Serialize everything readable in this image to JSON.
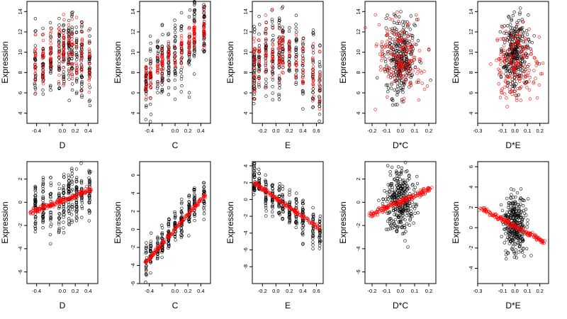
{
  "colors": {
    "observed": "#000000",
    "fitted": "#ff0000",
    "background": "#ffffff"
  },
  "chart_data": [
    {
      "type": "scatter",
      "row": 1,
      "xlabel": "D",
      "ylabel": "Expression",
      "xlim": [
        -0.55,
        0.55
      ],
      "ylim": [
        3,
        15
      ],
      "xticks": [
        -0.4,
        -0.2,
        0.0,
        0.2,
        0.4
      ],
      "xtick_labels": [
        "-0.4",
        "",
        "0.0",
        "0.2",
        "0.4"
      ],
      "yticks": [
        4,
        6,
        8,
        10,
        12,
        14
      ],
      "ytick_labels": [
        "4",
        "6",
        "8",
        "10",
        "12",
        "14"
      ],
      "grid": false,
      "legend": "none",
      "series": [
        {
          "color": "#000000",
          "x_levels": [
            -0.42,
            -0.3,
            -0.18,
            -0.05,
            0.02,
            0.1,
            0.15,
            0.22,
            0.3,
            0.42
          ],
          "y_center": [
            8.5,
            8.8,
            9.3,
            9.6,
            9.9,
            10.2,
            9.8,
            9.5,
            9.2,
            8.9
          ],
          "y_spread": 1.8,
          "n": 300
        },
        {
          "color": "#ff0000",
          "x_levels": [
            -0.42,
            -0.3,
            -0.18,
            -0.05,
            0.02,
            0.1,
            0.15,
            0.22,
            0.3,
            0.42
          ],
          "y_center": [
            8.8,
            9.2,
            9.6,
            10.0,
            10.3,
            10.5,
            10.0,
            9.7,
            9.4,
            9.0
          ],
          "y_spread": 1.4,
          "n": 170
        }
      ]
    },
    {
      "type": "scatter",
      "row": 1,
      "xlabel": "C",
      "ylabel": "Expression",
      "xlim": [
        -0.55,
        0.55
      ],
      "ylim": [
        3,
        15
      ],
      "xticks": [
        -0.4,
        -0.2,
        0.0,
        0.2,
        0.4
      ],
      "xtick_labels": [
        "-0.4",
        "",
        "0.0",
        "0.2",
        "0.4"
      ],
      "yticks": [
        4,
        6,
        8,
        10,
        12,
        14
      ],
      "ytick_labels": [
        "4",
        "6",
        "8",
        "10",
        "12",
        "14"
      ],
      "grid": false,
      "legend": "none",
      "series": [
        {
          "color": "#000000",
          "x_levels": [
            -0.45,
            -0.38,
            -0.27,
            -0.2,
            -0.1,
            0.0,
            0.1,
            0.22,
            0.3,
            0.45
          ],
          "y_center": [
            7.3,
            7.9,
            8.5,
            8.9,
            9.3,
            9.6,
            10.2,
            10.8,
            11.5,
            12.2
          ],
          "y_spread": 1.6,
          "n": 300
        },
        {
          "color": "#ff0000",
          "x_levels": [
            -0.45,
            -0.38,
            -0.27,
            -0.2,
            -0.1,
            0.0,
            0.1,
            0.22,
            0.3,
            0.45
          ],
          "y_center": [
            7.5,
            8.0,
            8.6,
            9.0,
            9.4,
            9.7,
            10.3,
            10.9,
            11.6,
            12.4
          ],
          "y_spread": 0.8,
          "n": 170
        }
      ]
    },
    {
      "type": "scatter",
      "row": 1,
      "xlabel": "E",
      "ylabel": "Expression",
      "xlim": [
        -0.35,
        0.7
      ],
      "ylim": [
        3,
        15
      ],
      "xticks": [
        -0.2,
        0.0,
        0.2,
        0.4,
        0.6
      ],
      "xtick_labels": [
        "-0.2",
        "0.0",
        "0.2",
        "0.4",
        "0.6"
      ],
      "yticks": [
        4,
        6,
        8,
        10,
        12,
        14
      ],
      "ytick_labels": [
        "4",
        "6",
        "8",
        "10",
        "12",
        "14"
      ],
      "grid": false,
      "legend": "none",
      "series": [
        {
          "color": "#000000",
          "x_levels": [
            -0.32,
            -0.25,
            -0.15,
            -0.05,
            0.05,
            0.1,
            0.2,
            0.3,
            0.4,
            0.55,
            0.65
          ],
          "y_center": [
            8.3,
            9.0,
            9.6,
            9.9,
            10.0,
            10.3,
            10.0,
            9.6,
            9.0,
            8.0,
            7.0
          ],
          "y_spread": 1.8,
          "n": 300
        },
        {
          "color": "#ff0000",
          "x_levels": [
            -0.32,
            -0.25,
            -0.15,
            -0.05,
            0.05,
            0.1,
            0.2,
            0.3,
            0.4,
            0.55,
            0.65
          ],
          "y_center": [
            8.5,
            9.2,
            9.8,
            10.1,
            10.2,
            10.5,
            10.2,
            9.8,
            9.1,
            8.3,
            7.4
          ],
          "y_spread": 1.5,
          "n": 170
        }
      ]
    },
    {
      "type": "scatter",
      "row": 1,
      "xlabel": "D*C",
      "ylabel": "Expression",
      "xlim": [
        -0.25,
        0.25
      ],
      "ylim": [
        3,
        15
      ],
      "xticks": [
        -0.2,
        -0.1,
        0.0,
        0.1,
        0.2
      ],
      "xtick_labels": [
        "-0.2",
        "-0.1",
        "0.0",
        "0.1",
        "0.2"
      ],
      "yticks": [
        4,
        6,
        8,
        10,
        12,
        14
      ],
      "ytick_labels": [
        "4",
        "6",
        "8",
        "10",
        "12",
        "14"
      ],
      "grid": false,
      "legend": "none",
      "series": [
        {
          "color": "#000000",
          "x_center": 0.0,
          "x_spread": 0.06,
          "y_center": 9.5,
          "y_spread": 2.0,
          "n": 300
        },
        {
          "color": "#ff0000",
          "x_center": 0.0,
          "x_spread": 0.08,
          "y_center": 9.5,
          "y_spread": 1.8,
          "n": 170
        }
      ]
    },
    {
      "type": "scatter",
      "row": 1,
      "xlabel": "D*E",
      "ylabel": "Expression",
      "xlim": [
        -0.3,
        0.27
      ],
      "ylim": [
        3,
        15
      ],
      "xticks": [
        -0.3,
        -0.1,
        0.0,
        0.1,
        0.2
      ],
      "xtick_labels": [
        "-0.3",
        "-0.1",
        "0.0",
        "0.1",
        "0.2"
      ],
      "yticks": [
        4,
        6,
        8,
        10,
        12,
        14
      ],
      "ytick_labels": [
        "4",
        "6",
        "8",
        "10",
        "12",
        "14"
      ],
      "grid": false,
      "legend": "none",
      "series": [
        {
          "color": "#000000",
          "x_center": 0.0,
          "x_spread": 0.05,
          "y_center": 9.8,
          "y_spread": 1.8,
          "n": 300
        },
        {
          "color": "#ff0000",
          "x_center": 0.0,
          "x_spread": 0.08,
          "y_center": 9.0,
          "y_spread": 1.8,
          "n": 170
        }
      ]
    },
    {
      "type": "scatter",
      "row": 2,
      "xlabel": "D",
      "ylabel": "Expression",
      "xlim": [
        -0.55,
        0.55
      ],
      "ylim": [
        -7,
        3.5
      ],
      "xticks": [
        -0.4,
        -0.2,
        0.0,
        0.2,
        0.4
      ],
      "xtick_labels": [
        "-0.4",
        "",
        "0.0",
        "0.2",
        "0.4"
      ],
      "yticks": [
        -6,
        -4,
        -2,
        0,
        2
      ],
      "ytick_labels": [
        "-6",
        "-4",
        "-2",
        "0",
        "2"
      ],
      "grid": false,
      "legend": "none",
      "series": [
        {
          "color": "#000000",
          "x_levels": [
            -0.42,
            -0.3,
            -0.18,
            -0.05,
            0.02,
            0.1,
            0.15,
            0.22,
            0.3,
            0.42
          ],
          "y_center": [
            -0.8,
            -0.6,
            -0.3,
            0.0,
            0.2,
            0.4,
            0.5,
            0.6,
            0.8,
            1.0
          ],
          "y_spread": 1.3,
          "n": 300
        },
        {
          "color": "#ff0000",
          "line": {
            "x0": -0.5,
            "y0": -0.9,
            "x1": 0.45,
            "y1": 1.1
          },
          "n": 160
        }
      ]
    },
    {
      "type": "scatter",
      "row": 2,
      "xlabel": "C",
      "ylabel": "Expression",
      "xlim": [
        -0.55,
        0.55
      ],
      "ylim": [
        -6,
        7.5
      ],
      "xticks": [
        -0.4,
        -0.2,
        0.0,
        0.2,
        0.4
      ],
      "xtick_labels": [
        "-0.4",
        "",
        "0.0",
        "0.2",
        "0.4"
      ],
      "yticks": [
        -6,
        -4,
        -2,
        0,
        2,
        4,
        6
      ],
      "ytick_labels": [
        "-6",
        "-4",
        "-2",
        "0",
        "2",
        "4",
        "6"
      ],
      "grid": false,
      "legend": "none",
      "series": [
        {
          "color": "#000000",
          "x_levels": [
            -0.45,
            -0.38,
            -0.27,
            -0.2,
            -0.1,
            0.0,
            0.1,
            0.22,
            0.3,
            0.45
          ],
          "y_center": [
            -3.6,
            -2.8,
            -2.1,
            -1.5,
            -0.8,
            0.2,
            1.0,
            2.0,
            2.8,
            3.6
          ],
          "y_spread": 0.9,
          "n": 300
        },
        {
          "color": "#ff0000",
          "line": {
            "x0": -0.47,
            "y0": -3.8,
            "x1": 0.48,
            "y1": 3.9
          },
          "n": 160
        }
      ]
    },
    {
      "type": "scatter",
      "row": 2,
      "xlabel": "E",
      "ylabel": "Expression",
      "xlim": [
        -0.35,
        0.7
      ],
      "ylim": [
        -10,
        4.5
      ],
      "xticks": [
        -0.2,
        0.0,
        0.2,
        0.4,
        0.6
      ],
      "xtick_labels": [
        "-0.2",
        "0.0",
        "0.2",
        "0.4",
        "0.6"
      ],
      "yticks": [
        -8,
        -6,
        -4,
        -2,
        0,
        2,
        4
      ],
      "ytick_labels": [
        "-8",
        "-6",
        "-4",
        "-2",
        "0",
        "2",
        "4"
      ],
      "grid": false,
      "legend": "none",
      "series": [
        {
          "color": "#000000",
          "x_levels": [
            -0.32,
            -0.25,
            -0.15,
            -0.05,
            0.05,
            0.1,
            0.2,
            0.3,
            0.4,
            0.55,
            0.65
          ],
          "y_center": [
            2.2,
            1.6,
            1.0,
            0.3,
            -0.3,
            -0.6,
            -1.2,
            -1.8,
            -2.4,
            -3.2,
            -3.8
          ],
          "y_spread": 1.1,
          "n": 300
        },
        {
          "color": "#ff0000",
          "line": {
            "x0": -0.33,
            "y0": 2.0,
            "x1": 0.66,
            "y1": -3.5
          },
          "n": 160
        }
      ]
    },
    {
      "type": "scatter",
      "row": 2,
      "xlabel": "D*C",
      "ylabel": "Expression",
      "xlim": [
        -0.25,
        0.25
      ],
      "ylim": [
        -7,
        3.5
      ],
      "xticks": [
        -0.2,
        -0.1,
        0.0,
        0.1,
        0.2
      ],
      "xtick_labels": [
        "-0.2",
        "-0.1",
        "0.0",
        "0.1",
        "0.2"
      ],
      "yticks": [
        -6,
        -4,
        -2,
        0,
        2
      ],
      "ytick_labels": [
        "-6",
        "-4",
        "-2",
        "0",
        "2"
      ],
      "grid": false,
      "legend": "none",
      "series": [
        {
          "color": "#000000",
          "x_center": 0.0,
          "x_spread": 0.05,
          "y_center": 0.0,
          "y_spread": 1.5,
          "n": 300
        },
        {
          "color": "#ff0000",
          "line": {
            "x0": -0.22,
            "y0": -1.1,
            "x1": 0.22,
            "y1": 1.2
          },
          "n": 160
        }
      ]
    },
    {
      "type": "scatter",
      "row": 2,
      "xlabel": "D*E",
      "ylabel": "Expression",
      "xlim": [
        -0.3,
        0.27
      ],
      "ylim": [
        -5.5,
        6.5
      ],
      "xticks": [
        -0.3,
        -0.1,
        0.0,
        0.1,
        0.2
      ],
      "xtick_labels": [
        "-0.3",
        "-0.1",
        "0.0",
        "0.1",
        "0.2"
      ],
      "yticks": [
        -4,
        -2,
        0,
        2,
        4,
        6
      ],
      "ytick_labels": [
        "-4",
        "-2",
        "0",
        "2",
        "4",
        "6"
      ],
      "grid": false,
      "legend": "none",
      "series": [
        {
          "color": "#000000",
          "x_center": 0.0,
          "x_spread": 0.045,
          "y_center": 0.2,
          "y_spread": 1.4,
          "n": 300
        },
        {
          "color": "#ff0000",
          "line": {
            "x0": -0.28,
            "y0": 2.0,
            "x1": 0.25,
            "y1": -1.5
          },
          "n": 160
        }
      ]
    }
  ]
}
